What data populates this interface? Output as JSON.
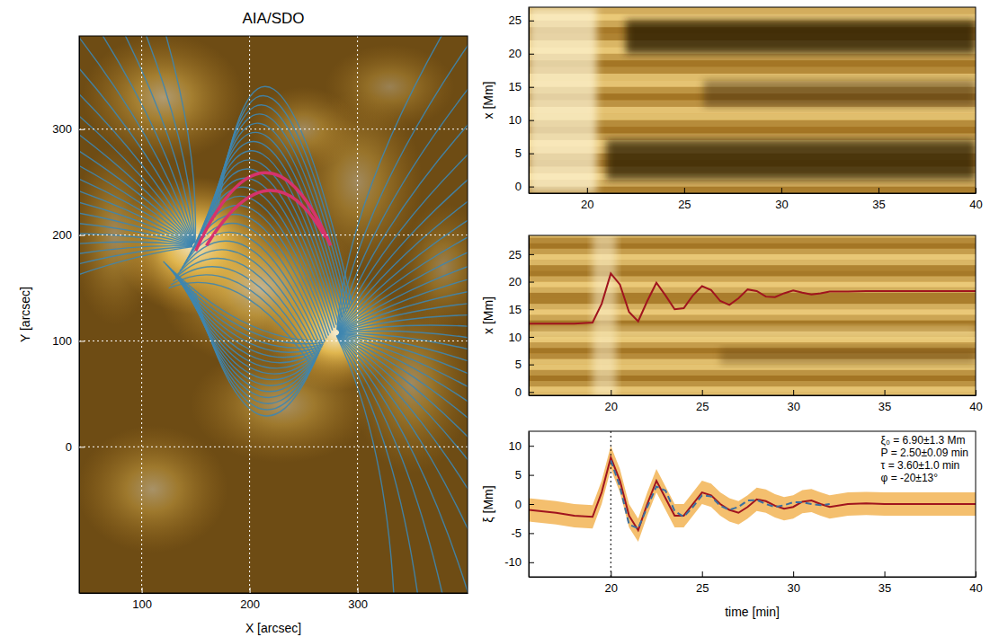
{
  "chart_data": [
    {
      "type": "image",
      "title": "AIA/SDO",
      "xlabel": "X [arcsec]",
      "ylabel": "Y [arcsec]",
      "xlim": [
        42,
        402
      ],
      "ylim": [
        -138,
        388
      ],
      "xticks": [
        100,
        200,
        300
      ],
      "yticks": [
        0,
        100,
        200,
        300
      ],
      "grid": true
    },
    {
      "type": "image",
      "ylabel": "x [Mm]",
      "xlim": [
        17,
        40
      ],
      "ylim": [
        -1,
        27
      ],
      "xticks": [
        20,
        25,
        30,
        35,
        40
      ],
      "yticks": [
        0,
        5,
        10,
        15,
        20,
        25
      ]
    },
    {
      "type": "line",
      "ylabel": "x [Mm]",
      "xlim": [
        15.5,
        40
      ],
      "ylim": [
        -0.6,
        28.4
      ],
      "xticks": [
        20,
        25,
        30,
        35,
        40
      ],
      "yticks": [
        0,
        5,
        10,
        15,
        20,
        25
      ],
      "x": [
        15.5,
        17,
        18,
        19,
        19.5,
        20,
        20.5,
        21,
        21.5,
        22,
        22.5,
        23,
        23.5,
        24,
        24.5,
        25,
        25.5,
        26,
        26.5,
        27,
        27.5,
        28,
        28.5,
        29,
        29.5,
        30,
        30.5,
        31,
        31.5,
        32,
        33,
        34,
        35,
        36,
        37,
        38,
        39,
        40
      ],
      "series": [
        {
          "color": "#a0141e",
          "line_style": "solid",
          "values": [
            12.4,
            12.4,
            12.4,
            12.6,
            16,
            21.5,
            19.5,
            14.5,
            12.8,
            16.5,
            19.8,
            17.5,
            15,
            15.2,
            17.5,
            19.2,
            18.5,
            16.5,
            15.8,
            17,
            18.6,
            18.3,
            17.3,
            17.2,
            17.9,
            18.4,
            18,
            17.7,
            17.9,
            18.2,
            18.2,
            18.3,
            18.3,
            18.3,
            18.3,
            18.3,
            18.3,
            18.3
          ]
        }
      ]
    },
    {
      "type": "line",
      "xlabel": "time [min]",
      "ylabel": "ξ [Mm]",
      "xlim": [
        15.5,
        40
      ],
      "ylim": [
        -12.5,
        12.5
      ],
      "xticks": [
        20,
        25,
        30,
        35,
        40
      ],
      "yticks": [
        -10,
        -5,
        0,
        5,
        10
      ],
      "vline": 20,
      "annotations": [
        "ξ₀ = 6.90±1.3 Mm",
        "P = 2.50±0.09 min",
        "τ = 3.60±1.0 min",
        "φ = -20±13°"
      ],
      "x": [
        15.5,
        17,
        18,
        19,
        19.5,
        20,
        20.5,
        21,
        21.5,
        22,
        22.5,
        23,
        23.5,
        24,
        24.5,
        25,
        25.5,
        26,
        26.5,
        27,
        27.5,
        28,
        28.5,
        29,
        29.5,
        30,
        30.5,
        31,
        31.5,
        32,
        33,
        34,
        35,
        36,
        37,
        38,
        39,
        40
      ],
      "series": [
        {
          "color": "#a0141e",
          "line_style": "solid",
          "values": [
            -1,
            -1.5,
            -2,
            -2.2,
            2,
            8,
            4,
            -2,
            -4.5,
            0,
            4,
            1,
            -2,
            -2,
            0,
            2,
            1.5,
            0,
            -1,
            -1.5,
            -0.5,
            0.8,
            0.5,
            -0.3,
            -0.8,
            -0.5,
            0.4,
            0.6,
            0,
            -0.5,
            0,
            0.1,
            0,
            0,
            0,
            0,
            0,
            0
          ],
          "error": [
            2,
            2,
            2,
            2,
            2,
            2,
            2,
            2,
            2,
            2,
            2,
            2,
            2,
            2,
            2,
            2,
            2,
            2,
            2,
            2,
            2,
            2,
            2,
            2,
            2,
            2,
            2,
            2,
            2,
            2,
            2,
            2,
            2,
            2,
            2,
            2,
            2,
            2
          ]
        },
        {
          "color": "#3b6fa0",
          "line_style": "dashed",
          "values": [
            null,
            null,
            null,
            null,
            null,
            7.5,
            3,
            -3.5,
            -4.2,
            -0.5,
            3,
            2.3,
            -1.2,
            -2.2,
            -0.5,
            1.5,
            1.3,
            -0.3,
            -1,
            -0.5,
            0.6,
            0.7,
            0,
            -0.5,
            -0.2,
            0.3,
            0.3,
            0,
            -0.2,
            0,
            null,
            null,
            null,
            null,
            null,
            null,
            null,
            null
          ]
        }
      ]
    }
  ]
}
